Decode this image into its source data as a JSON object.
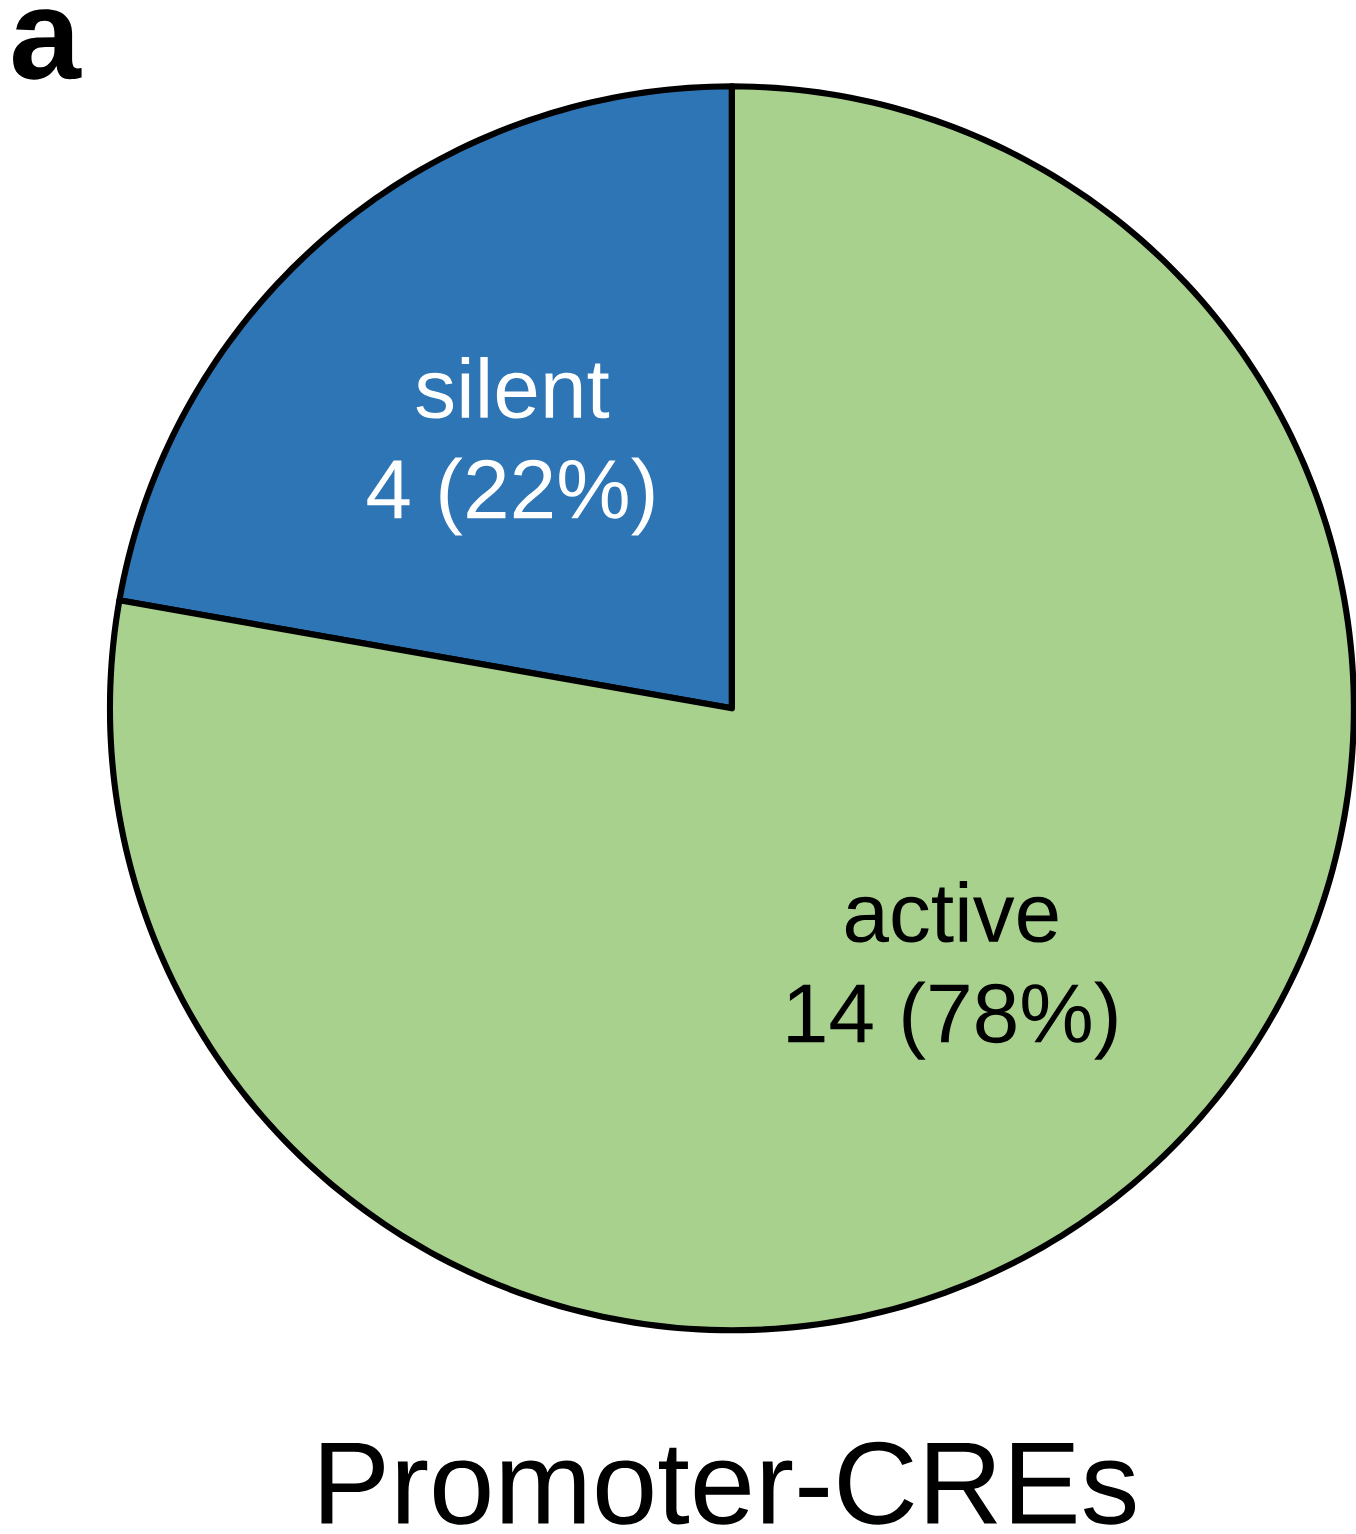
{
  "chart_data": {
    "type": "pie",
    "title": "Promoter-CREs",
    "categories": [
      "silent",
      "active"
    ],
    "values": [
      4,
      14
    ],
    "value_labels": [
      "4 (22%)",
      "14 (78%)"
    ],
    "colors": [
      "#2e75b6",
      "#a9d18e"
    ],
    "annotations": [
      "a"
    ]
  }
}
